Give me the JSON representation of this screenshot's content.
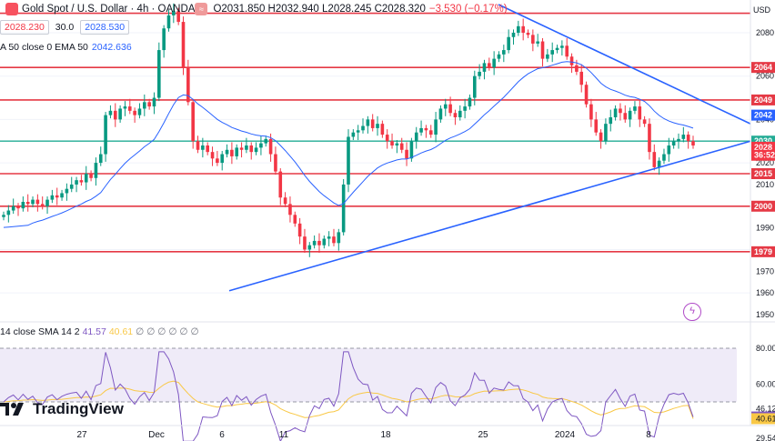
{
  "header": {
    "title": "Gold Spot / U.S. Dollar · 4h · OANDA",
    "ohlc": "O2031.850 H2032.940 L2028.245 C2028.320",
    "change": "−3.530 (−0.17%)"
  },
  "trade": {
    "sell_price": "2028.230",
    "spread": "30.0",
    "buy_price": "2028.530"
  },
  "ema": {
    "label": "A 50 close 0 EMA 50",
    "value": "2042.636"
  },
  "rsi": {
    "label": "14 close SMA 14 2",
    "value": "41.57",
    "value2": "40.61",
    "placeholders": "∅ ∅ ∅ ∅ ∅ ∅"
  },
  "brand": {
    "name": "TradingView"
  },
  "price_axis": {
    "currency": "USD",
    "ticks": [
      "2080",
      "2060",
      "2040",
      "2020",
      "2010",
      "2000",
      "1990",
      "1980",
      "1970",
      "1960",
      "1950"
    ],
    "level_labels": [
      "2064",
      "2049",
      "2042",
      "2030",
      "2028",
      "36:52",
      "2015",
      "2000",
      "1979"
    ]
  },
  "rsi_axis": {
    "ticks": [
      "80.00",
      "60.00",
      "46.12",
      "41.57",
      "40.61",
      "29.54"
    ]
  },
  "time_axis": {
    "labels": [
      "27",
      "Dec",
      "6",
      "11",
      "18",
      "25",
      "2024",
      "8"
    ]
  },
  "colors": {
    "up": "#089981",
    "down": "#f23645",
    "level": "#e53945",
    "trend": "#2962ff",
    "ema": "#2962ff",
    "rsi": "#7e57c2",
    "rsi_ma": "#f9c846"
  },
  "chart_data": {
    "type": "candlestick",
    "timeframe": "4h",
    "y_range": [
      1945,
      2090
    ],
    "closes": [
      1996,
      1998,
      2000,
      1999,
      2002,
      2001,
      2003,
      2001,
      2000,
      2003,
      2005,
      2004,
      2006,
      2008,
      2010,
      2012,
      2011,
      2015,
      2013,
      2020,
      2024,
      2042,
      2044,
      2040,
      2045,
      2046,
      2044,
      2042,
      2045,
      2048,
      2046,
      2050,
      2072,
      2082,
      2088,
      2090,
      2085,
      2064,
      2048,
      2030,
      2026,
      2028,
      2025,
      2022,
      2020,
      2024,
      2026,
      2023,
      2027,
      2026,
      2028,
      2025,
      2027,
      2029,
      2031,
      2024,
      2016,
      2004,
      2001,
      1996,
      1992,
      1986,
      1980,
      1982,
      1984,
      1982,
      1985,
      1986,
      1983,
      1988,
      2010,
      2032,
      2034,
      2035,
      2037,
      2040,
      2036,
      2038,
      2033,
      2030,
      2028,
      2029,
      2026,
      2022,
      2030,
      2034,
      2036,
      2035,
      2033,
      2040,
      2045,
      2047,
      2043,
      2041,
      2044,
      2046,
      2050,
      2060,
      2062,
      2066,
      2064,
      2068,
      2070,
      2072,
      2078,
      2080,
      2083,
      2080,
      2079,
      2075,
      2076,
      2068,
      2070,
      2072,
      2073,
      2074,
      2069,
      2065,
      2062,
      2056,
      2047,
      2040,
      2034,
      2030,
      2038,
      2041,
      2045,
      2043,
      2040,
      2044,
      2046,
      2040,
      2038,
      2025,
      2018,
      2021,
      2024,
      2028,
      2030,
      2031,
      2033,
      2030,
      2028
    ],
    "support_resistance": [
      2089,
      2064,
      2049,
      2030,
      2015,
      2000,
      1979
    ],
    "trendlines": [
      {
        "name": "descending resistance",
        "from": {
          "x": "Dec 26",
          "y": 2093
        },
        "to": {
          "x": "Jan 12",
          "y": 2038
        }
      },
      {
        "name": "ascending support",
        "from": {
          "x": "Dec 5",
          "y": 1961
        },
        "to": {
          "x": "Jan 12",
          "y": 2030
        }
      }
    ],
    "ema50_last": 2042.636,
    "rsi": {
      "last": 41.57,
      "ma": 40.61,
      "range": [
        20,
        90
      ],
      "band": [
        30,
        80
      ]
    }
  }
}
